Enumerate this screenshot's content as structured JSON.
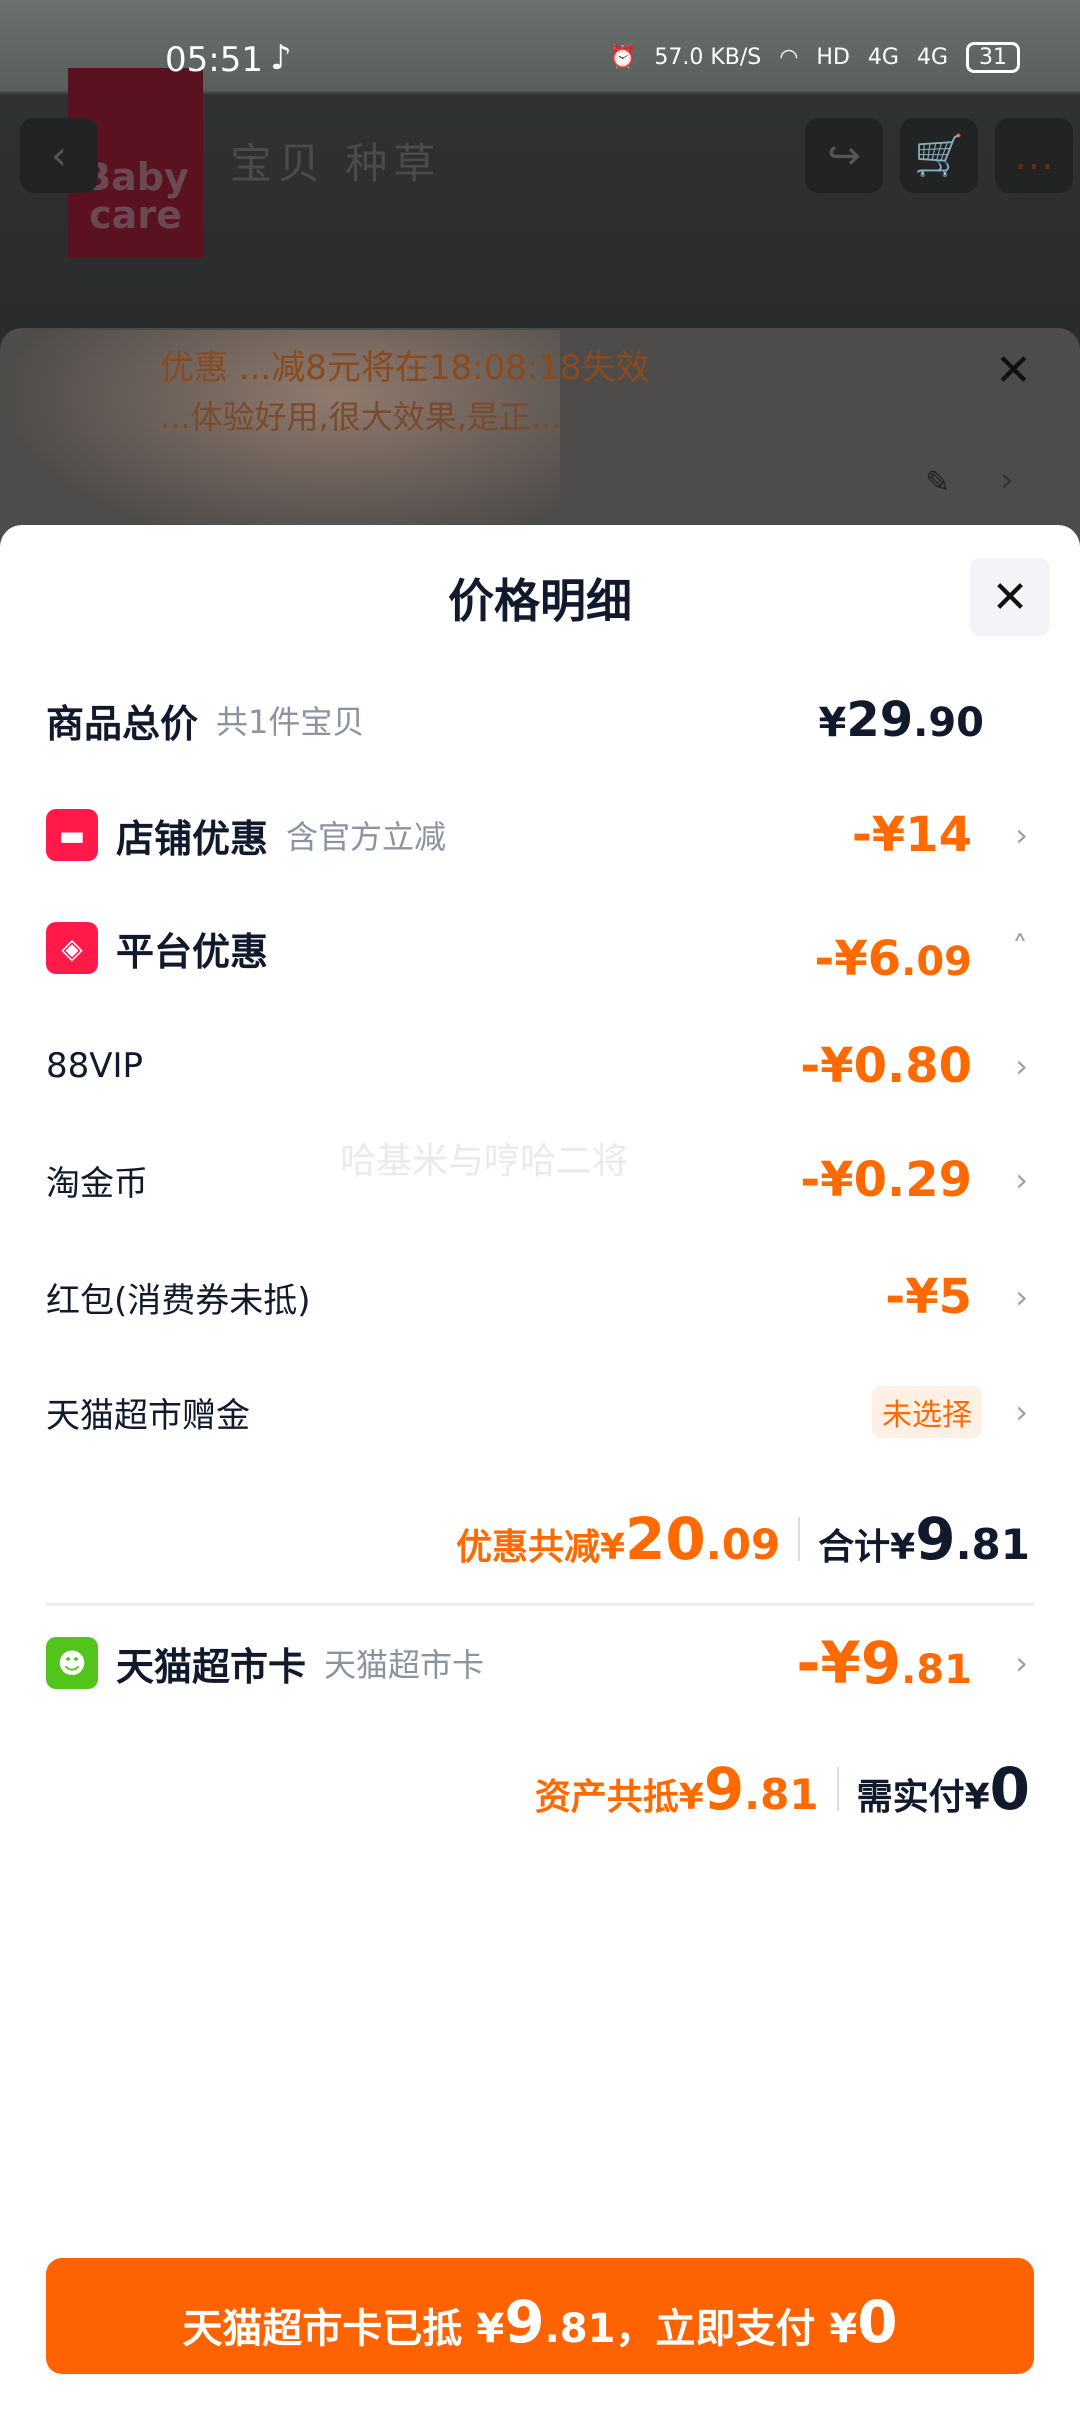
{
  "status_bar": {
    "time": "05:51",
    "net_speed": "57.0 KB/S",
    "battery": "31",
    "signal": "4G",
    "hd": "HD"
  },
  "background": {
    "nav_tabs": "宝贝  种草",
    "logo": "Baby care",
    "promo_line1": "优惠 ...减8元将在18:08:18失效",
    "promo_line2": "...体验好用,很大效果,是正..."
  },
  "sheet": {
    "title": "价格明细",
    "total": {
      "label": "商品总价",
      "sub": "共1件宝贝",
      "currency": "¥",
      "int": "29",
      "dec": ".90"
    },
    "store_discount": {
      "label": "店铺优惠",
      "sub": "含官方立减",
      "amount": "-¥14"
    },
    "platform_discount": {
      "label": "平台优惠",
      "amount_int": "-¥6",
      "amount_dec": ".09"
    },
    "items": [
      {
        "label": "88VIP",
        "amount": "-¥0.80"
      },
      {
        "label": "淘金币",
        "amount": "-¥0.29"
      },
      {
        "label": "红包(消费券未抵)",
        "amount": "-¥5"
      },
      {
        "label": "天猫超市赠金",
        "badge": "未选择"
      }
    ],
    "discount_summary": {
      "label": "优惠共减¥",
      "int": "20",
      "dec": ".09",
      "total_label": "合计¥",
      "total_int": "9",
      "total_dec": ".81"
    },
    "tmall_card": {
      "label": "天猫超市卡",
      "sub": "天猫超市卡",
      "amount_int": "-¥9",
      "amount_dec": ".81"
    },
    "asset_summary": {
      "label": "资产共抵¥",
      "int": "9",
      "dec": ".81",
      "pay_label": "需实付¥",
      "pay": "0"
    },
    "watermark": "哈基米与哼哈二将",
    "pay_button": {
      "prefix": "天猫超市卡已抵 ¥",
      "int": "9",
      "dec": ".81",
      "mid": "，立即支付 ¥",
      "pay": "0"
    }
  },
  "colors": {
    "accent": "#ff6200",
    "text": "#11192d",
    "muted": "#8b93a1",
    "store_icon": "#ff1a4a",
    "card_icon": "#52c41a"
  }
}
